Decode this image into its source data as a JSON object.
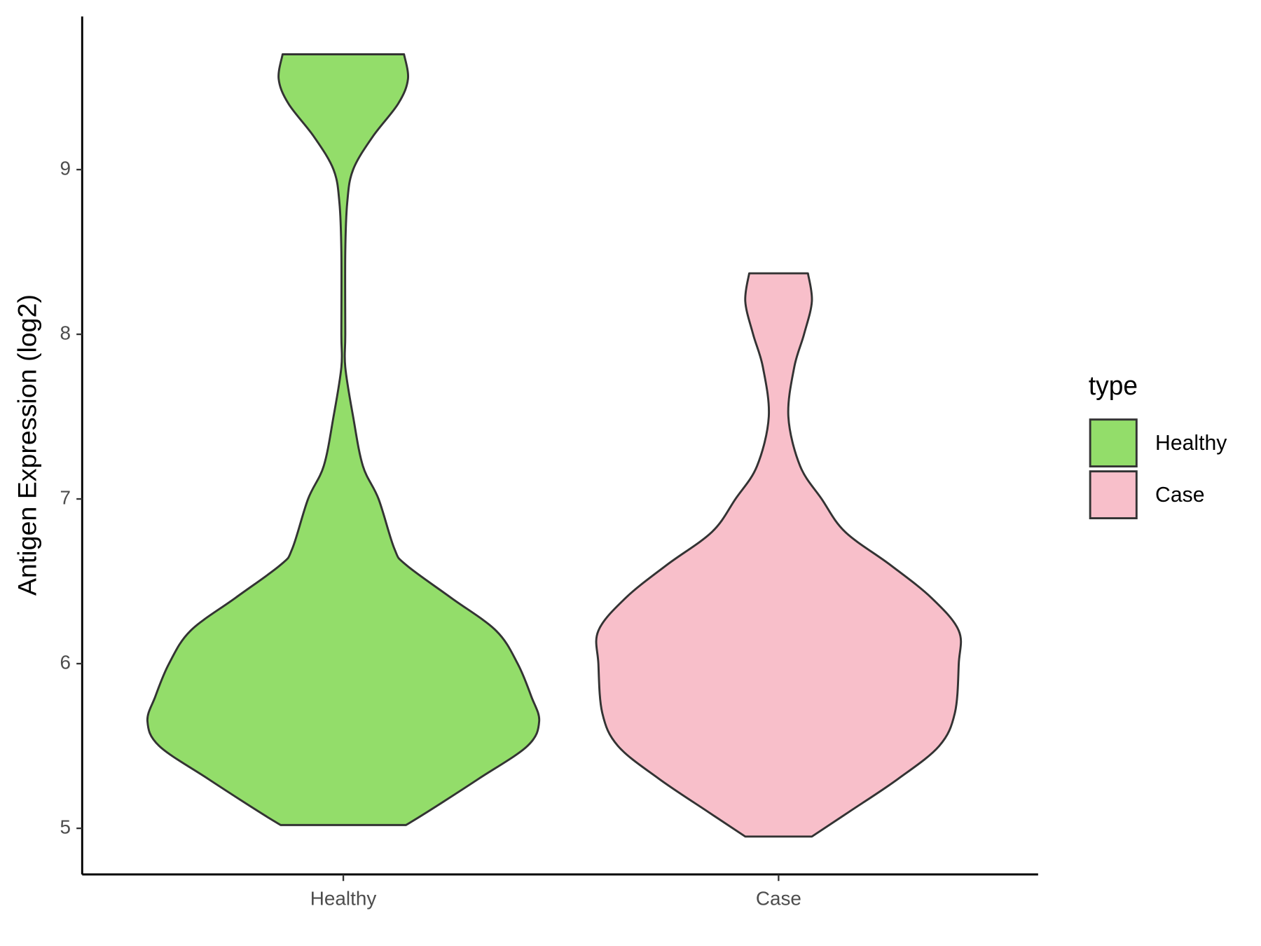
{
  "chart_data": {
    "type": "violin",
    "y_label": "Antigen Expression (log2)",
    "categories": [
      "Healthy",
      "Case"
    ],
    "legend_title": "type",
    "legend": "right",
    "ylim": [
      4.72,
      9.93
    ],
    "yticks": [
      5,
      6,
      7,
      8,
      9
    ],
    "series": [
      {
        "name": "Healthy",
        "color": "#93dd6a",
        "values": [
          5.02,
          5.1,
          5.3,
          5.5,
          5.65,
          5.8,
          6.0,
          6.2,
          6.4,
          6.6,
          6.7,
          7.0,
          7.2,
          7.5,
          7.8,
          8.0,
          8.5,
          8.8,
          9.0,
          9.2,
          9.4,
          9.55,
          9.7
        ],
        "widths": [
          0.32,
          0.43,
          0.69,
          0.94,
          1,
          0.96,
          0.89,
          0.78,
          0.55,
          0.32,
          0.26,
          0.18,
          0.1,
          0.05,
          0.01,
          0.01,
          0.01,
          0.02,
          0.05,
          0.15,
          0.28,
          0.33,
          0.31
        ]
      },
      {
        "name": "Case",
        "color": "#f8bfca",
        "values": [
          4.95,
          5.1,
          5.3,
          5.5,
          5.7,
          6.0,
          6.2,
          6.4,
          6.6,
          6.8,
          7.0,
          7.2,
          7.5,
          7.8,
          8.0,
          8.2,
          8.37
        ],
        "widths": [
          0.17,
          0.36,
          0.61,
          0.82,
          0.9,
          0.92,
          0.92,
          0.78,
          0.57,
          0.34,
          0.22,
          0.11,
          0.05,
          0.08,
          0.13,
          0.17,
          0.15
        ]
      }
    ]
  }
}
